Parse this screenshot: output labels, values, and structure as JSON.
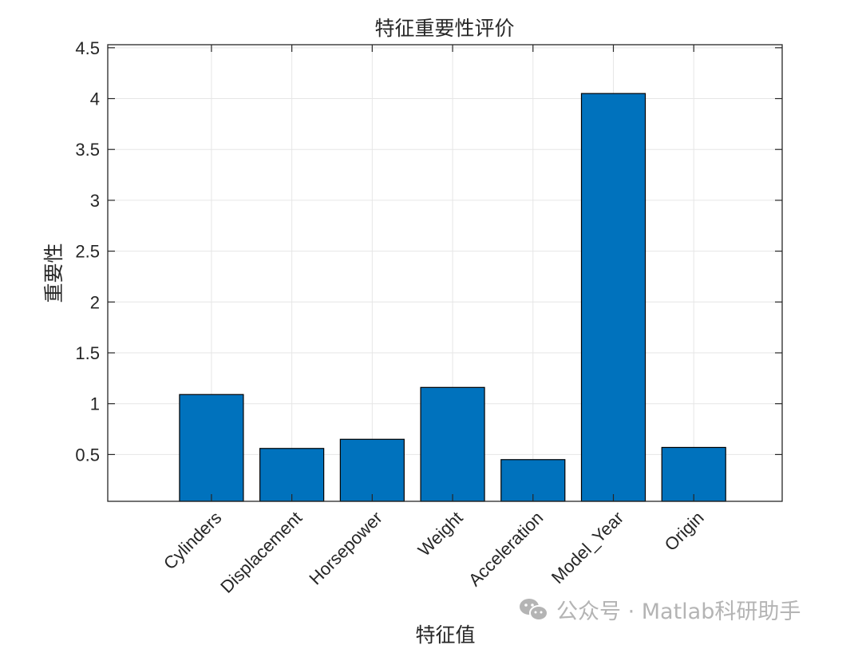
{
  "chart_data": {
    "type": "bar",
    "title": "特征重要性评价",
    "xlabel": "特征值",
    "ylabel": "重要性",
    "categories": [
      "Cylinders",
      "Displacement",
      "Horsepower",
      "Weight",
      "Acceleration",
      "Model_Year",
      "Origin"
    ],
    "values": [
      1.09,
      0.56,
      0.65,
      1.16,
      0.45,
      4.05,
      0.57
    ],
    "ylim": [
      0.04,
      4.53
    ],
    "yticks": [
      0.5,
      1,
      1.5,
      2,
      2.5,
      3,
      3.5,
      4,
      4.5
    ],
    "ytick_labels": [
      "0.5",
      "1",
      "1.5",
      "2",
      "2.5",
      "3",
      "3.5",
      "4",
      "4.5"
    ],
    "xlim": [
      -0.29,
      8.1
    ],
    "xtick_rotation": 45,
    "grid": true,
    "legend": null,
    "bar_color": "#0072BD",
    "bar_edge_color": "#000000"
  },
  "watermark": {
    "icon": "wechat-icon",
    "text": "公众号 · Matlab科研助手"
  }
}
